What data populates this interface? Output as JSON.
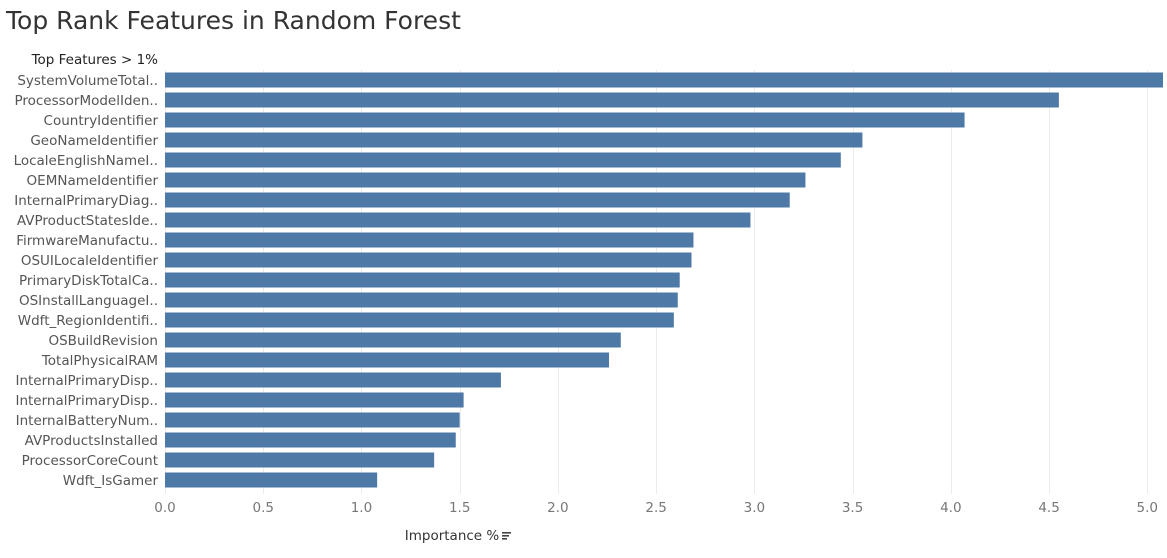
{
  "chart_data": {
    "type": "bar",
    "orientation": "horizontal",
    "title": "Top Rank Features in Random Forest",
    "row_header": "Top Features > 1%",
    "xlabel": "Importance %",
    "sort_icon": "sort-descending-icon",
    "categories": [
      "SystemVolumeTotal..",
      "ProcessorModelIden..",
      "CountryIdentifier",
      "GeoNameIdentifier",
      "LocaleEnglishNameI..",
      "OEMNameIdentifier",
      "InternalPrimaryDiag..",
      "AVProductStatesIde..",
      "FirmwareManufactu..",
      "OSUILocaleIdentifier",
      "PrimaryDiskTotalCa..",
      "OSInstallLanguageI..",
      "Wdft_RegionIdentifi..",
      "OSBuildRevision",
      "TotalPhysicalRAM",
      "InternalPrimaryDisp..",
      "InternalPrimaryDisp..",
      "InternalBatteryNum..",
      "AVProductsInstalled",
      "ProcessorCoreCount",
      "Wdft_IsGamer"
    ],
    "values": [
      5.08,
      4.55,
      4.07,
      3.55,
      3.44,
      3.26,
      3.18,
      2.98,
      2.69,
      2.68,
      2.62,
      2.61,
      2.59,
      2.32,
      2.26,
      1.71,
      1.52,
      1.5,
      1.48,
      1.37,
      1.08
    ],
    "xlim": [
      0,
      5.08
    ],
    "xticks": [
      "0.0",
      "0.5",
      "1.0",
      "1.5",
      "2.0",
      "2.5",
      "3.0",
      "3.5",
      "4.0",
      "4.5",
      "5.0"
    ],
    "grid": true,
    "bar_color": "#4e79a7",
    "grid_color": "#ececec"
  }
}
